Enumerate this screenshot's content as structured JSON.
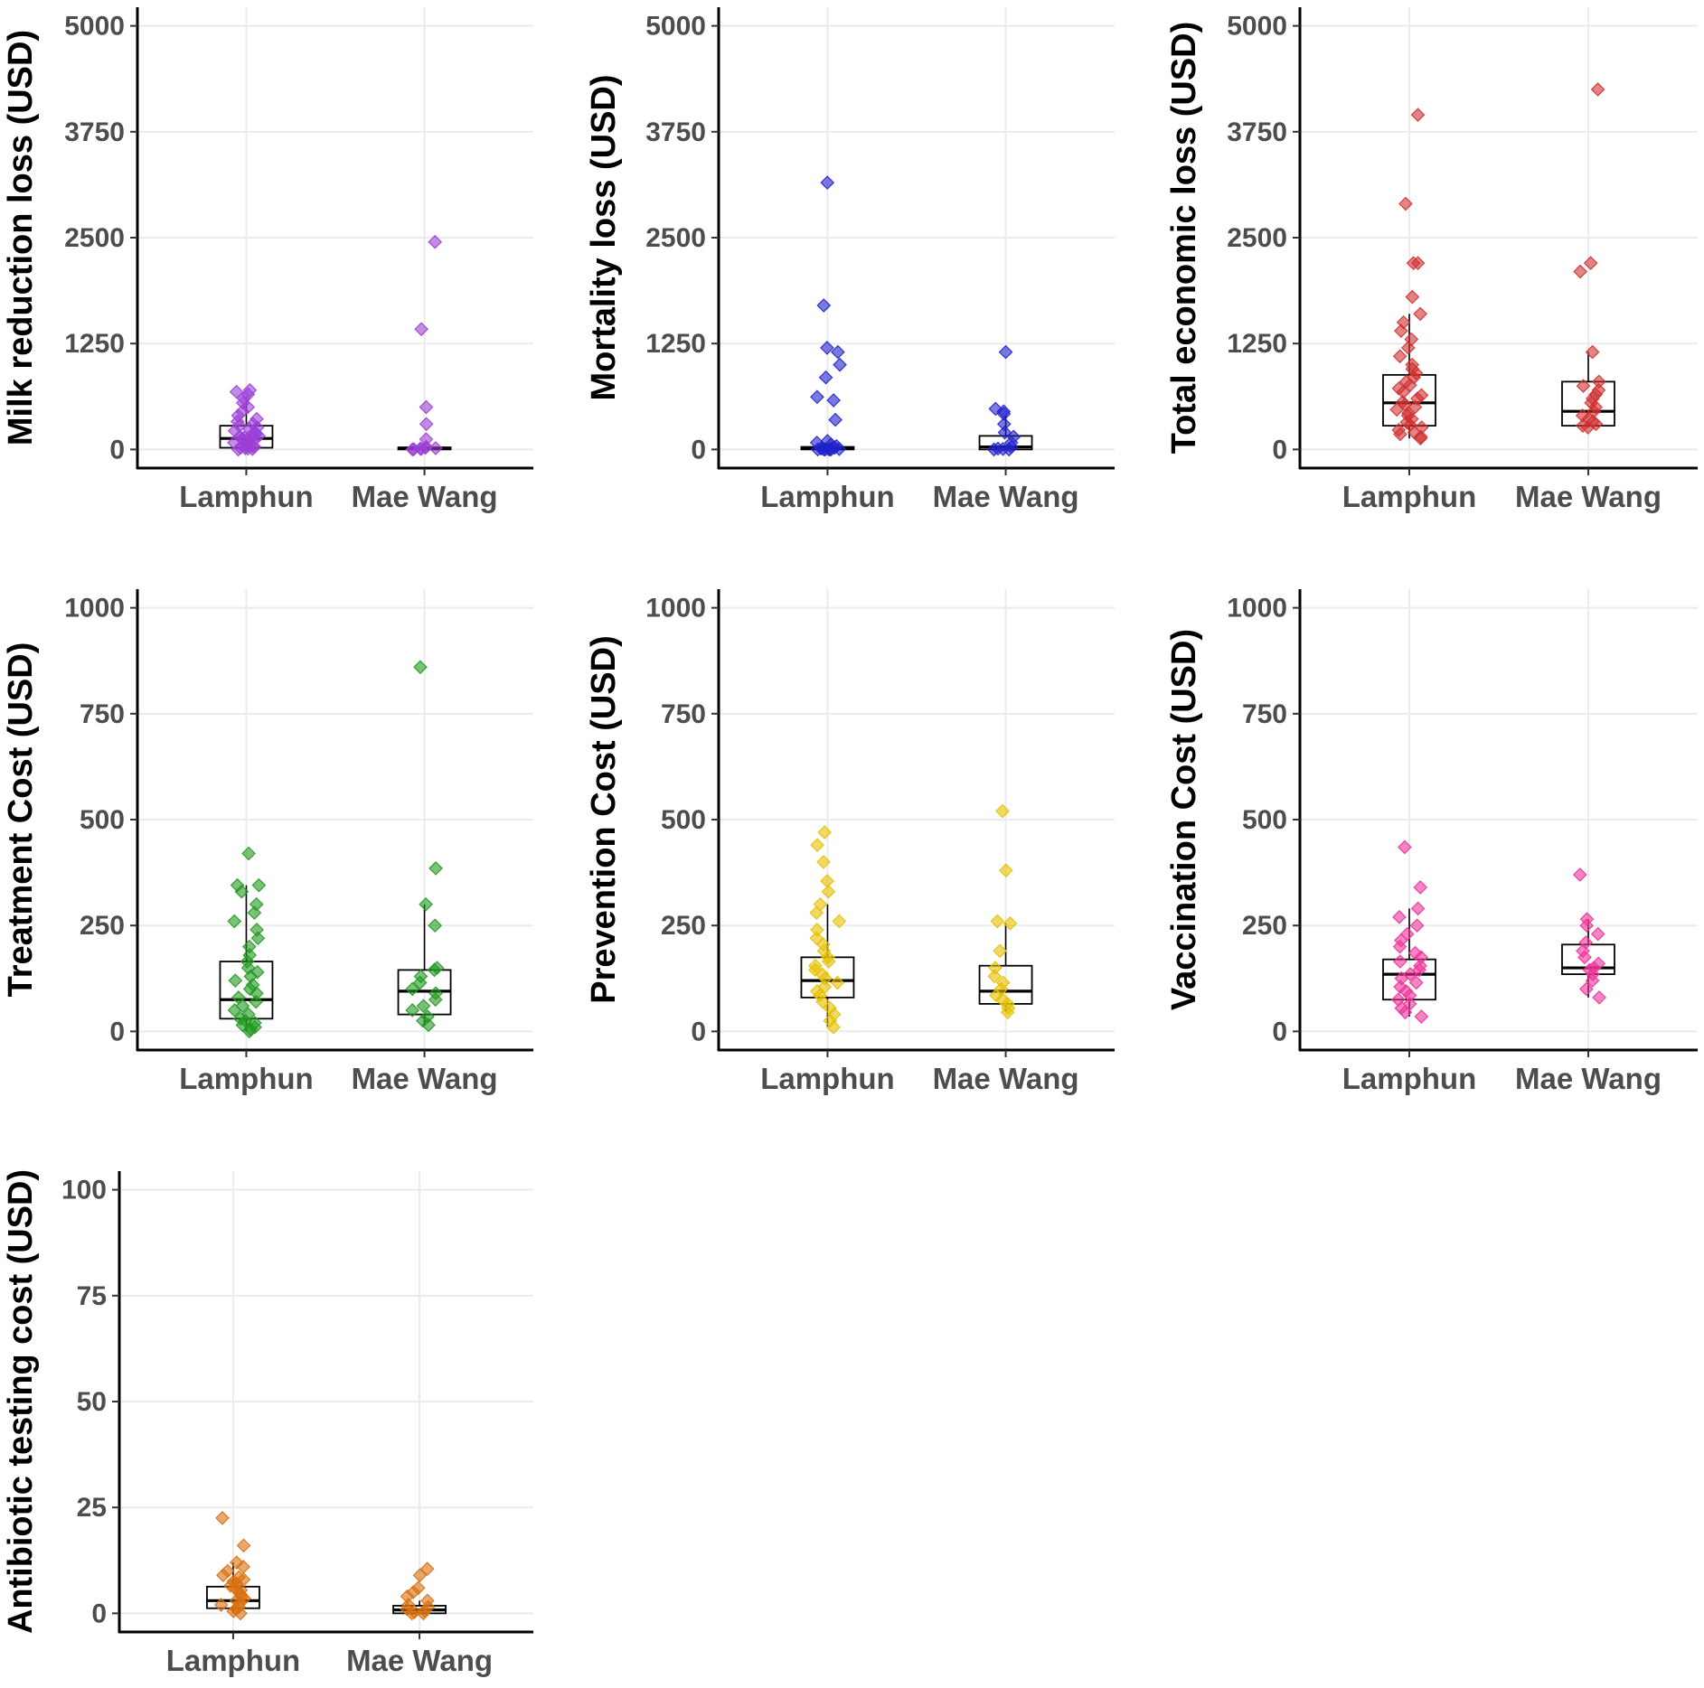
{
  "chart_data": [
    {
      "type": "boxplot",
      "ylabel": "Milk reduction loss (USD)",
      "categories": [
        "Lamphun",
        "Mae Wang"
      ],
      "yticks": [
        0,
        1250,
        2500,
        3750,
        5000
      ],
      "ylim": [
        -220,
        5220
      ],
      "color": "#9b3fd6",
      "boxes": [
        {
          "q1": 20,
          "median": 130,
          "q3": 280,
          "whisker_low": 0,
          "whisker_high": 620
        },
        {
          "q1": 0,
          "median": 10,
          "q3": 25,
          "whisker_low": 0,
          "whisker_high": 60
        }
      ],
      "points": [
        [
          0,
          5,
          10,
          15,
          20,
          30,
          40,
          50,
          60,
          70,
          80,
          90,
          100,
          110,
          120,
          130,
          140,
          150,
          160,
          170,
          180,
          200,
          220,
          240,
          260,
          280,
          300,
          330,
          360,
          400,
          450,
          500,
          550,
          600,
          650,
          680,
          700
        ],
        [
          0,
          2,
          5,
          10,
          15,
          20,
          30,
          120,
          300,
          500,
          1420,
          2450
        ]
      ]
    },
    {
      "type": "boxplot",
      "ylabel": "Mortality loss (USD)",
      "categories": [
        "Lamphun",
        "Mae Wang"
      ],
      "yticks": [
        0,
        1250,
        2500,
        3750,
        5000
      ],
      "ylim": [
        -220,
        5220
      ],
      "color": "#2222cc",
      "boxes": [
        {
          "q1": 0,
          "median": 15,
          "q3": 30,
          "whisker_low": 0,
          "whisker_high": 60
        },
        {
          "q1": 0,
          "median": 30,
          "q3": 160,
          "whisker_low": 0,
          "whisker_high": 400
        }
      ],
      "points": [
        [
          0,
          0,
          0,
          0,
          0,
          0,
          5,
          10,
          15,
          20,
          40,
          60,
          80,
          100,
          350,
          580,
          620,
          850,
          1000,
          1150,
          1200,
          1700,
          3150
        ],
        [
          0,
          0,
          5,
          10,
          30,
          80,
          150,
          200,
          300,
          420,
          450,
          480,
          1150
        ]
      ]
    },
    {
      "type": "boxplot",
      "ylabel": "Total economic loss (USD)",
      "categories": [
        "Lamphun",
        "Mae Wang"
      ],
      "yticks": [
        0,
        1250,
        2500,
        3750,
        5000
      ],
      "ylim": [
        -220,
        5220
      ],
      "color": "#d03030",
      "boxes": [
        {
          "q1": 280,
          "median": 550,
          "q3": 880,
          "whisker_low": 130,
          "whisker_high": 1600
        },
        {
          "q1": 280,
          "median": 450,
          "q3": 800,
          "whisker_low": 260,
          "whisker_high": 1150
        }
      ],
      "points": [
        [
          130,
          150,
          180,
          200,
          230,
          260,
          290,
          320,
          360,
          400,
          430,
          470,
          500,
          530,
          560,
          600,
          640,
          680,
          720,
          760,
          800,
          850,
          900,
          950,
          1000,
          1100,
          1200,
          1300,
          1400,
          1500,
          1600,
          1800,
          2200,
          2200,
          2900,
          3950
        ],
        [
          260,
          280,
          300,
          330,
          360,
          400,
          450,
          500,
          550,
          600,
          650,
          700,
          750,
          800,
          1150,
          2100,
          2200,
          4250
        ]
      ]
    },
    {
      "type": "boxplot",
      "ylabel": "Treatment Cost (USD)",
      "categories": [
        "Lamphun",
        "Mae Wang"
      ],
      "yticks": [
        0,
        250,
        500,
        750,
        1000
      ],
      "ylim": [
        -44,
        1044
      ],
      "color": "#229922",
      "boxes": [
        {
          "q1": 30,
          "median": 75,
          "q3": 165,
          "whisker_low": 0,
          "whisker_high": 345
        },
        {
          "q1": 40,
          "median": 95,
          "q3": 145,
          "whisker_low": 15,
          "whisker_high": 300
        }
      ],
      "points": [
        [
          0,
          5,
          10,
          15,
          20,
          25,
          30,
          40,
          50,
          60,
          70,
          80,
          90,
          100,
          110,
          120,
          130,
          140,
          150,
          165,
          180,
          200,
          220,
          240,
          260,
          280,
          300,
          330,
          345,
          345,
          420
        ],
        [
          15,
          25,
          35,
          50,
          60,
          75,
          90,
          100,
          115,
          130,
          145,
          150,
          250,
          300,
          385,
          860
        ]
      ]
    },
    {
      "type": "boxplot",
      "ylabel": "Prevention Cost (USD)",
      "categories": [
        "Lamphun",
        "Mae Wang"
      ],
      "yticks": [
        0,
        250,
        500,
        750,
        1000
      ],
      "ylim": [
        -44,
        1044
      ],
      "color": "#e6c000",
      "boxes": [
        {
          "q1": 80,
          "median": 120,
          "q3": 175,
          "whisker_low": 10,
          "whisker_high": 300
        },
        {
          "q1": 65,
          "median": 95,
          "q3": 155,
          "whisker_low": 45,
          "whisker_high": 255
        }
      ],
      "points": [
        [
          10,
          25,
          40,
          55,
          70,
          85,
          95,
          105,
          115,
          125,
          135,
          145,
          155,
          165,
          175,
          190,
          205,
          220,
          240,
          260,
          280,
          300,
          330,
          355,
          400,
          440,
          470
        ],
        [
          45,
          55,
          65,
          75,
          85,
          100,
          115,
          130,
          150,
          190,
          255,
          260,
          380,
          520
        ]
      ]
    },
    {
      "type": "boxplot",
      "ylabel": "Vaccination Cost (USD)",
      "categories": [
        "Lamphun",
        "Mae Wang"
      ],
      "yticks": [
        0,
        250,
        500,
        750,
        1000
      ],
      "ylim": [
        -44,
        1044
      ],
      "color": "#ee3399",
      "boxes": [
        {
          "q1": 75,
          "median": 135,
          "q3": 170,
          "whisker_low": 35,
          "whisker_high": 290
        },
        {
          "q1": 135,
          "median": 150,
          "q3": 205,
          "whisker_low": 80,
          "whisker_high": 265
        }
      ],
      "points": [
        [
          35,
          45,
          55,
          65,
          75,
          85,
          95,
          105,
          115,
          125,
          135,
          145,
          155,
          165,
          175,
          185,
          200,
          215,
          230,
          250,
          270,
          290,
          340,
          435
        ],
        [
          80,
          100,
          120,
          135,
          145,
          150,
          160,
          175,
          190,
          210,
          230,
          250,
          265,
          370
        ]
      ]
    },
    {
      "type": "boxplot",
      "ylabel": "Antibiotic testing cost (USD)",
      "categories": [
        "Lamphun",
        "Mae Wang"
      ],
      "yticks": [
        0,
        25,
        50,
        75,
        100
      ],
      "ylim": [
        -4.4,
        104.4
      ],
      "color": "#d9700f",
      "boxes": [
        {
          "q1": 1.2,
          "median": 3,
          "q3": 6.3,
          "whisker_low": 0,
          "whisker_high": 12
        },
        {
          "q1": 0,
          "median": 0.8,
          "q3": 1.8,
          "whisker_low": 0,
          "whisker_high": 3
        }
      ],
      "points": [
        [
          0,
          0.5,
          1,
          1.5,
          2,
          2.5,
          3,
          3.5,
          4,
          4.5,
          5,
          5.5,
          6,
          6.5,
          7,
          7.5,
          8,
          8.5,
          9,
          10,
          11,
          12,
          16,
          22.5
        ],
        [
          0,
          0,
          0.3,
          0.6,
          1,
          1.5,
          2,
          3,
          4,
          5,
          6,
          9,
          10.5
        ]
      ]
    }
  ]
}
